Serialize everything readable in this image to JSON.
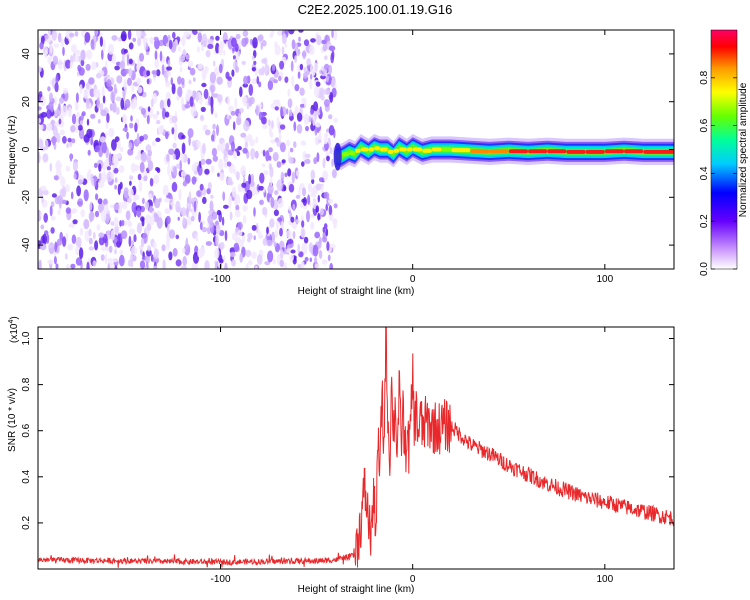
{
  "figure": {
    "title": "C2E2.2025.100.01.19.G16"
  },
  "chart_data": [
    {
      "type": "heatmap",
      "xlabel": "Height of straight line (km)",
      "ylabel": "Frequency (Hz)",
      "xlim": [
        -195,
        136
      ],
      "ylim": [
        -50,
        50
      ],
      "x_ticks": [
        -100,
        0,
        100
      ],
      "y_ticks": [
        -40,
        -20,
        0,
        20,
        40
      ],
      "colorbar": {
        "label": "Normalized spectral amplitude",
        "range": [
          0,
          1
        ],
        "ticks": [
          0.0,
          0.2,
          0.4,
          0.6,
          0.8
        ]
      },
      "noise_region": {
        "x_range": [
          -195,
          -40
        ],
        "frequency_range": [
          -50,
          50
        ],
        "amplitude_range": [
          0.02,
          0.3
        ]
      },
      "signal_track": {
        "x": [
          -40,
          -37,
          -33,
          -30,
          -27,
          -23,
          -20,
          -17,
          -13,
          -10,
          -7,
          -3,
          0,
          5,
          10,
          15,
          20,
          30,
          40,
          50,
          60,
          70,
          80,
          90,
          100,
          110,
          120,
          136
        ],
        "frequency": [
          -3,
          -3,
          -1,
          -2,
          1,
          -1,
          1,
          0,
          0,
          -2,
          1,
          -1,
          1,
          -1,
          0,
          0,
          0,
          -0.5,
          -1,
          -0.5,
          -1,
          -0.5,
          -1,
          -1,
          -1,
          -0.5,
          -1,
          -1
        ],
        "amplitude": [
          0.25,
          0.35,
          0.5,
          0.6,
          0.85,
          0.6,
          0.9,
          0.7,
          0.8,
          0.6,
          0.85,
          0.65,
          0.9,
          0.6,
          0.8,
          0.6,
          0.7,
          0.8,
          0.85,
          0.9,
          0.92,
          0.95,
          0.97,
          0.95,
          0.9,
          0.95,
          0.97,
          0.95
        ]
      }
    },
    {
      "type": "line",
      "xlabel": "Height of straight line (km)",
      "ylabel": "SNR (10 * v/v)",
      "y_multiplier": "(x10",
      "y_multiplier_exp": "4",
      "y_multiplier_close": ")",
      "xlim": [
        -195,
        136
      ],
      "ylim": [
        0,
        1.05
      ],
      "x_ticks": [
        -100,
        0,
        100
      ],
      "y_ticks": [
        0.2,
        0.4,
        0.6,
        0.8,
        1.0
      ],
      "series": [
        {
          "color": "#e8282b",
          "x": [
            -195,
            -150,
            -100,
            -50,
            -40,
            -30,
            -27,
            -25,
            -22,
            -20,
            -19,
            -18,
            -17,
            -16,
            -15,
            -14,
            -13,
            -12,
            -11,
            -10,
            -9,
            -8,
            -7,
            -6,
            -5,
            -4,
            -3,
            -2,
            -1,
            0,
            1,
            2,
            3,
            4,
            5,
            7,
            10,
            13,
            16,
            20,
            25,
            30,
            40,
            50,
            60,
            70,
            80,
            90,
            100,
            110,
            120,
            130,
            136
          ],
          "y": [
            0.04,
            0.035,
            0.03,
            0.035,
            0.04,
            0.06,
            0.2,
            0.35,
            0.15,
            0.3,
            0.18,
            0.55,
            0.4,
            0.8,
            0.5,
            1.05,
            0.7,
            0.45,
            0.8,
            0.6,
            0.72,
            0.5,
            0.78,
            0.55,
            0.7,
            0.48,
            0.6,
            0.52,
            0.62,
            0.85,
            0.6,
            0.7,
            0.58,
            0.66,
            0.6,
            0.64,
            0.62,
            0.61,
            0.62,
            0.62,
            0.58,
            0.54,
            0.5,
            0.45,
            0.41,
            0.37,
            0.34,
            0.31,
            0.29,
            0.27,
            0.25,
            0.23,
            0.22
          ]
        }
      ]
    }
  ]
}
